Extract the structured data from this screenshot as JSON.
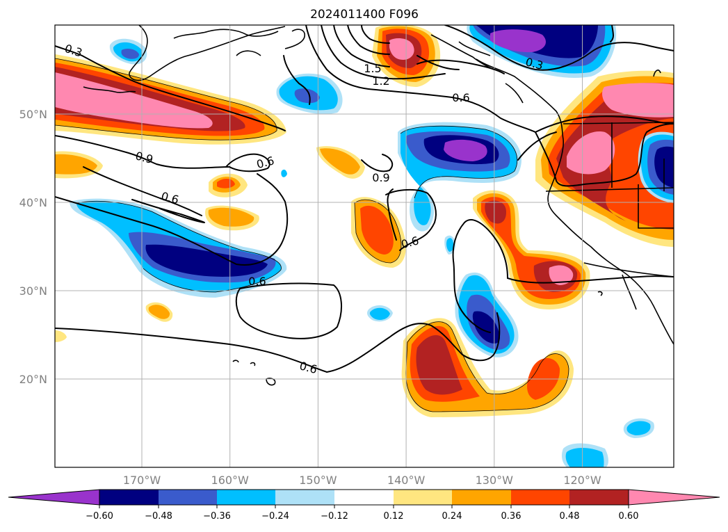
{
  "title": "2024011400 F096",
  "lat_labels": [
    {
      "text": "50°N",
      "lat": 50
    },
    {
      "text": "40°N",
      "lat": 40
    },
    {
      "text": "30°N",
      "lat": 30
    },
    {
      "text": "20°N",
      "lat": 20
    }
  ],
  "lon_labels": [
    {
      "text": "170°W",
      "lon": -170
    },
    {
      "text": "160°W",
      "lon": -160
    },
    {
      "text": "150°W",
      "lon": -150
    },
    {
      "text": "140°W",
      "lon": -140
    },
    {
      "text": "130°W",
      "lon": -130
    },
    {
      "text": "120°W",
      "lon": -120
    }
  ],
  "colorbar": {
    "ticks": [
      "−0.60",
      "−0.48",
      "−0.36",
      "−0.24",
      "−0.12",
      "0.12",
      "0.24",
      "0.36",
      "0.48",
      "0.60"
    ],
    "colors": [
      "#9933cc",
      "#000080",
      "#3a5bcc",
      "#00bfff",
      "#aee1f7",
      "#ffffff",
      "#ffe680",
      "#ffa500",
      "#ff4500",
      "#b22222",
      "#ff88b0"
    ]
  },
  "contour_labels": [
    "0.3",
    "1.5",
    "1.2",
    "0.6",
    "0.9",
    "0.6",
    "0.6",
    "0.9",
    "0.6",
    "0.6",
    "0.6",
    "0.3"
  ]
}
